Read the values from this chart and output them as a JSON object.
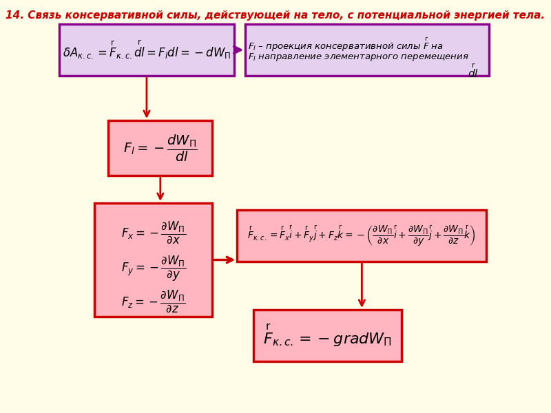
{
  "title": "14. Связь консервативной силы, действующей на тело, с потенциальной энергией тела.",
  "bg_color": "#FFFDE7",
  "title_color": "#CC0000",
  "title_fontsize": 11,
  "box1_formula": "$\\delta A_{\\kappa.c.} = \\overset{\\frown}{F}_{\\kappa.c.}\\overset{\\frown}{dl} = F_l dl = -dW_{\\Pi}$",
  "box2_formula": "$F_l$ – проекция консервативной силы $\\overset{\\frown}{F}$ на\n$F_l$ направление элементарного перемещения     $\\overset{\\frown}{dl}$",
  "box3_formula": "$F_l = -\\dfrac{dW_{\\Pi}}{dl}$",
  "box4_formula": "$F_x = -\\dfrac{\\partial W_{\\Pi}}{\\partial x}$\n\n$F_y = -\\dfrac{\\partial W_{\\Pi}}{\\partial y}$\n\n$F_z = -\\dfrac{\\partial W_{\\Pi}}{\\partial z}$",
  "box5_formula": "$\\overset{\\frown}{F}_{\\kappa.c.} = \\overset{\\frown}{F}_x\\overset{\\frown}{i} + \\overset{\\frown}{F}_y\\overset{\\frown}{j} + F_z\\overset{\\frown}{k} = -\\left(\\dfrac{\\partial W_{\\Pi}}{\\partial x}\\overset{\\frown}{i} + \\dfrac{\\partial W_{\\Pi}}{\\partial y}\\overset{\\frown}{j} + \\dfrac{\\partial W_{\\Pi}}{\\partial z}\\overset{\\frown}{k}\\right)$",
  "box6_formula": "$\\overset{\\frown}{F}_{\\kappa.c.} = -gradW_{\\Pi}$",
  "purple_border": "#8B008B",
  "red_border": "#CC0000",
  "pink_fill": "#FFB6C1",
  "purple_fill": "#E6D0F0",
  "arrow_color": "#CC0000"
}
